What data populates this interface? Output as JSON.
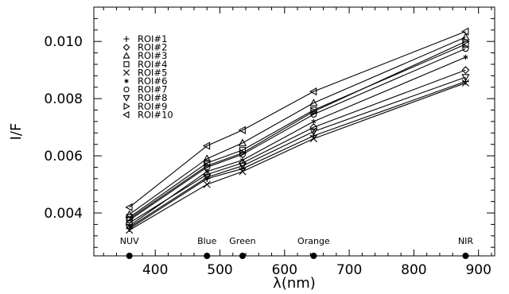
{
  "chart_data": {
    "type": "line",
    "xlabel": "λ(nm)",
    "ylabel": "I/F",
    "xlim": [
      305,
      925
    ],
    "ylim": [
      0.0025,
      0.0112
    ],
    "x_ticks": [
      400,
      500,
      600,
      700,
      800,
      900
    ],
    "x_tick_labels": [
      "400",
      "500",
      "600",
      "700",
      "800",
      "900"
    ],
    "y_ticks": [
      0.004,
      0.006,
      0.008,
      0.01
    ],
    "y_tick_labels": [
      "0.004",
      "0.006",
      "0.008",
      "0.010"
    ],
    "x": [
      360,
      480,
      535,
      645,
      880
    ],
    "bands": [
      {
        "label": "NUV",
        "x": 360
      },
      {
        "label": "Blue",
        "x": 480
      },
      {
        "label": "Green",
        "x": 535
      },
      {
        "label": "Orange",
        "x": 645
      },
      {
        "label": "NIR",
        "x": 880
      }
    ],
    "grid": false,
    "legend_position": "top-left",
    "series": [
      {
        "name": "ROI#1",
        "marker": "plus",
        "values": [
          0.00345,
          0.0052,
          0.00555,
          0.0067,
          0.0086
        ]
      },
      {
        "name": "ROI#2",
        "marker": "diamond",
        "values": [
          0.00365,
          0.00535,
          0.00575,
          0.007,
          0.009
        ]
      },
      {
        "name": "ROI#3",
        "marker": "triangle-up",
        "values": [
          0.00395,
          0.0059,
          0.00645,
          0.00785,
          0.01015
        ]
      },
      {
        "name": "ROI#4",
        "marker": "square",
        "values": [
          0.00385,
          0.00575,
          0.0062,
          0.0076,
          0.0099
        ]
      },
      {
        "name": "ROI#5",
        "marker": "x",
        "values": [
          0.0034,
          0.005,
          0.00545,
          0.0066,
          0.00855
        ]
      },
      {
        "name": "ROI#6",
        "marker": "star",
        "values": [
          0.00355,
          0.00545,
          0.00585,
          0.0072,
          0.00945
        ]
      },
      {
        "name": "ROI#7",
        "marker": "circle",
        "values": [
          0.00375,
          0.0056,
          0.00605,
          0.00745,
          0.00975
        ]
      },
      {
        "name": "ROI#8",
        "marker": "triangle-down",
        "values": [
          0.0035,
          0.00525,
          0.00565,
          0.00685,
          0.00875
        ]
      },
      {
        "name": "ROI#9",
        "marker": "triangle-right",
        "values": [
          0.0038,
          0.00565,
          0.0061,
          0.00755,
          0.01
        ]
      },
      {
        "name": "ROI#10",
        "marker": "triangle-left",
        "values": [
          0.0042,
          0.00635,
          0.0069,
          0.00825,
          0.01035
        ]
      }
    ]
  }
}
